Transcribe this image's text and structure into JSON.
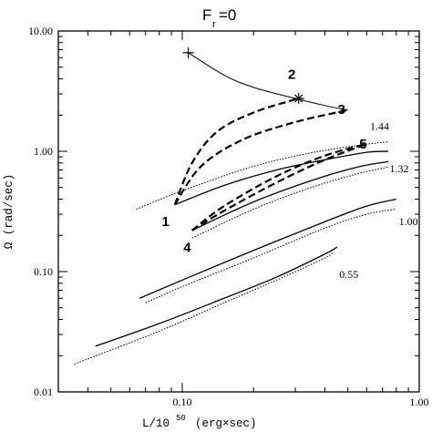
{
  "chart_data": {
    "type": "line",
    "title_main": "F",
    "title_sub": "r",
    "title_rest": "=0",
    "xlabel": "L/10",
    "xlabel_exp": "50",
    "xlabel_unit": "(erg×sec)",
    "ylabel": "Ω (rad/sec)",
    "x_scale": "log",
    "y_scale": "log",
    "xlim": [
      0.03,
      1.0
    ],
    "ylim": [
      0.01,
      10.0
    ],
    "x_ticks": [
      {
        "value": 0.1,
        "label": "0.10"
      },
      {
        "value": 1.0,
        "label": "1.00"
      }
    ],
    "y_ticks": [
      {
        "value": 10,
        "label": "10.00"
      },
      {
        "value": 1,
        "label": "1.00"
      },
      {
        "value": 0.1,
        "label": "0.10"
      },
      {
        "value": 0.01,
        "label": "0.01"
      }
    ],
    "series": [
      {
        "label": "1.44",
        "style": "solid",
        "points": [
          [
            0.093,
            0.36
          ],
          [
            0.15,
            0.52
          ],
          [
            0.25,
            0.7
          ],
          [
            0.4,
            0.85
          ],
          [
            0.6,
            0.98
          ],
          [
            0.74,
            1.0
          ]
        ]
      },
      {
        "label": "",
        "style": "dotted",
        "points": [
          [
            0.064,
            0.33
          ],
          [
            0.1,
            0.47
          ],
          [
            0.2,
            0.75
          ],
          [
            0.35,
            0.97
          ],
          [
            0.55,
            1.12
          ],
          [
            0.74,
            1.2
          ]
        ]
      },
      {
        "label": "1.32",
        "style": "solid",
        "points": [
          [
            0.11,
            0.22
          ],
          [
            0.2,
            0.38
          ],
          [
            0.35,
            0.57
          ],
          [
            0.55,
            0.74
          ],
          [
            0.74,
            0.82
          ]
        ]
      },
      {
        "label": "",
        "style": "dotted",
        "points": [
          [
            0.11,
            0.19
          ],
          [
            0.2,
            0.33
          ],
          [
            0.35,
            0.5
          ],
          [
            0.55,
            0.65
          ],
          [
            0.74,
            0.74
          ]
        ]
      },
      {
        "label": "1.00",
        "style": "solid",
        "points": [
          [
            0.066,
            0.06
          ],
          [
            0.1,
            0.085
          ],
          [
            0.2,
            0.15
          ],
          [
            0.4,
            0.26
          ],
          [
            0.6,
            0.35
          ],
          [
            0.8,
            0.4
          ]
        ]
      },
      {
        "label": "",
        "style": "dotted",
        "points": [
          [
            0.07,
            0.055
          ],
          [
            0.1,
            0.075
          ],
          [
            0.2,
            0.13
          ],
          [
            0.4,
            0.23
          ],
          [
            0.6,
            0.3
          ],
          [
            0.8,
            0.33
          ]
        ]
      },
      {
        "label": "0.55",
        "style": "solid",
        "points": [
          [
            0.043,
            0.024
          ],
          [
            0.08,
            0.037
          ],
          [
            0.15,
            0.06
          ],
          [
            0.25,
            0.09
          ],
          [
            0.4,
            0.14
          ],
          [
            0.45,
            0.16
          ]
        ]
      },
      {
        "label": "",
        "style": "dotted",
        "points": [
          [
            0.035,
            0.017
          ],
          [
            0.08,
            0.032
          ],
          [
            0.15,
            0.055
          ],
          [
            0.25,
            0.085
          ],
          [
            0.4,
            0.13
          ],
          [
            0.43,
            0.145
          ]
        ]
      },
      {
        "label": "",
        "style": "thin-solid",
        "points": [
          [
            0.106,
            6.6
          ],
          [
            0.15,
            4.3
          ],
          [
            0.2,
            3.4
          ],
          [
            0.3,
            2.75
          ],
          [
            0.4,
            2.4
          ],
          [
            0.5,
            2.2
          ]
        ]
      },
      {
        "label": "",
        "style": "dashed",
        "points": [
          [
            0.093,
            0.36
          ],
          [
            0.11,
            0.8
          ],
          [
            0.14,
            1.45
          ],
          [
            0.2,
            2.1
          ],
          [
            0.31,
            2.75
          ]
        ]
      },
      {
        "label": "",
        "style": "dashed",
        "points": [
          [
            0.093,
            0.36
          ],
          [
            0.12,
            0.75
          ],
          [
            0.18,
            1.25
          ],
          [
            0.3,
            1.75
          ],
          [
            0.5,
            2.2
          ]
        ]
      },
      {
        "label": "",
        "style": "dashed",
        "points": [
          [
            0.11,
            0.22
          ],
          [
            0.15,
            0.35
          ],
          [
            0.25,
            0.62
          ],
          [
            0.4,
            0.92
          ],
          [
            0.6,
            1.15
          ]
        ]
      },
      {
        "label": "",
        "style": "dashed",
        "points": [
          [
            0.11,
            0.22
          ],
          [
            0.15,
            0.32
          ],
          [
            0.25,
            0.55
          ],
          [
            0.4,
            0.85
          ],
          [
            0.6,
            1.15
          ]
        ]
      }
    ],
    "curve_labels": [
      {
        "text": "1.44",
        "x": 0.62,
        "y": 1.62
      },
      {
        "text": "1.32",
        "x": 0.75,
        "y": 0.72
      },
      {
        "text": "1.00",
        "x": 0.82,
        "y": 0.26
      },
      {
        "text": "0.55",
        "x": 0.46,
        "y": 0.095
      }
    ],
    "points": [
      {
        "label": "1",
        "x": 0.093,
        "y": 0.36,
        "lx": 0.085,
        "ly": 0.24
      },
      {
        "label": "2",
        "x": 0.31,
        "y": 2.75,
        "lx": 0.29,
        "ly": 4.0
      },
      {
        "label": "3",
        "x": 0.5,
        "y": 2.2,
        "lx": 0.47,
        "ly": 2.05
      },
      {
        "label": "4",
        "x": 0.11,
        "y": 0.22,
        "lx": 0.105,
        "ly": 0.145
      },
      {
        "label": "5",
        "x": 0.6,
        "y": 1.15,
        "lx": 0.58,
        "ly": 1.05
      }
    ],
    "markers": [
      {
        "type": "plus",
        "x": 0.106,
        "y": 6.6
      },
      {
        "type": "asterisk",
        "x": 0.31,
        "y": 2.75
      }
    ]
  }
}
